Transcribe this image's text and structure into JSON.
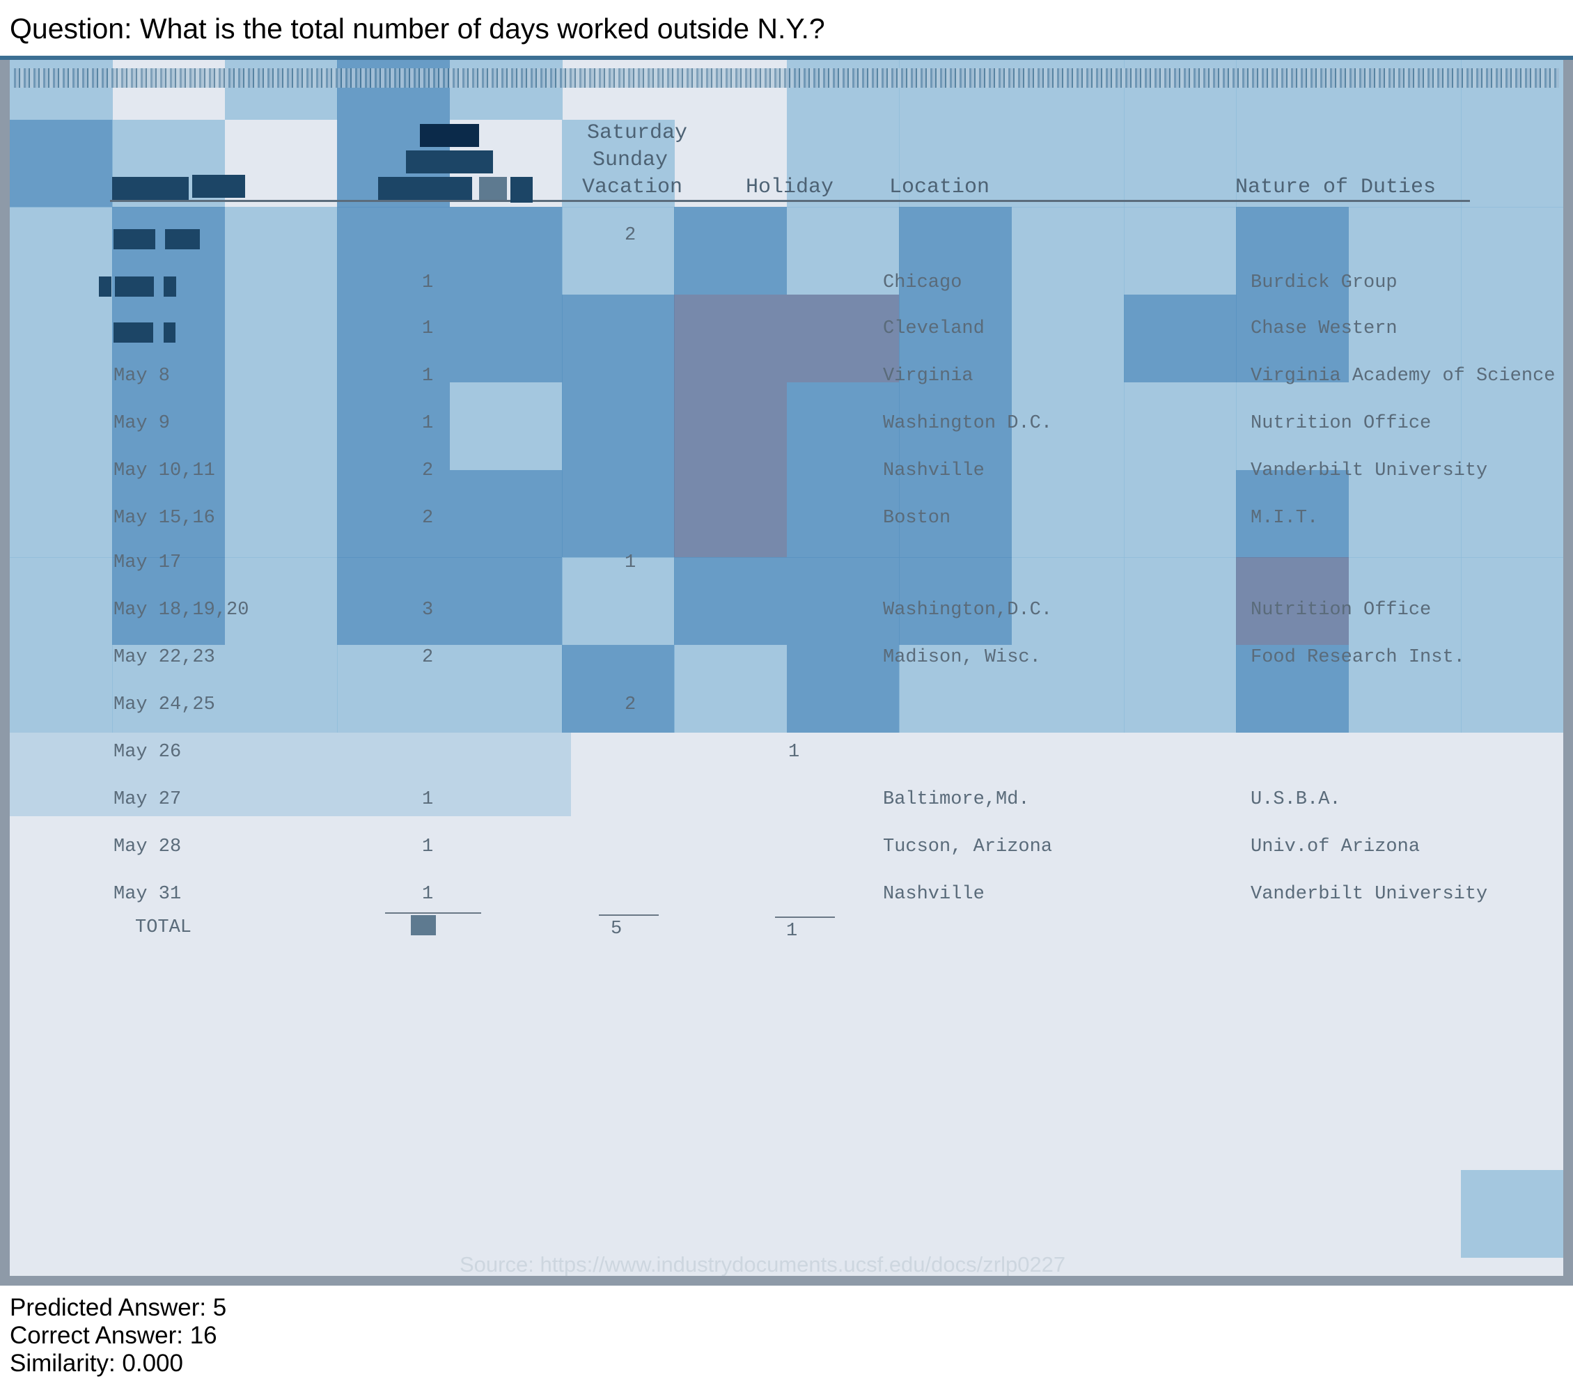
{
  "question": "Question: What is the total number of days worked outside N.Y.?",
  "document": {
    "headers": {
      "vacation_line1": "Saturday",
      "vacation_line2": "Sunday",
      "vacation_line3": "Vacation",
      "holiday": "Holiday",
      "location": "Location",
      "duties": "Nature of Duties"
    },
    "rows": [
      {
        "date": "",
        "days": "",
        "vacation": "2",
        "holiday": "",
        "location": "",
        "duties": ""
      },
      {
        "date": "",
        "days": "1",
        "vacation": "",
        "holiday": "",
        "location": "Chicago",
        "duties": "Burdick Group"
      },
      {
        "date": "",
        "days": "1",
        "vacation": "",
        "holiday": "",
        "location": "Cleveland",
        "duties": "Chase Western"
      },
      {
        "date": "May 8",
        "days": "1",
        "vacation": "",
        "holiday": "",
        "location": "Virginia",
        "duties": "Virginia Academy of Science"
      },
      {
        "date": "May 9",
        "days": "1",
        "vacation": "",
        "holiday": "",
        "location": "Washington D.C.",
        "duties": "Nutrition Office"
      },
      {
        "date": "May 10,11",
        "days": "2",
        "vacation": "",
        "holiday": "",
        "location": "Nashville",
        "duties": "Vanderbilt University"
      },
      {
        "date": "May 15,16",
        "days": "2",
        "vacation": "",
        "holiday": "",
        "location": "Boston",
        "duties": "M.I.T."
      },
      {
        "date": "May 17",
        "days": "",
        "vacation": "1",
        "holiday": "",
        "location": "",
        "duties": ""
      },
      {
        "date": "May 18,19,20",
        "days": "3",
        "vacation": "",
        "holiday": "",
        "location": "Washington,D.C.",
        "duties": "Nutrition Office"
      },
      {
        "date": "May 22,23",
        "days": "2",
        "vacation": "",
        "holiday": "",
        "location": "Madison, Wisc.",
        "duties": "Food Research Inst."
      },
      {
        "date": "May 24,25",
        "days": "",
        "vacation": "2",
        "holiday": "",
        "location": "",
        "duties": ""
      },
      {
        "date": "May 26",
        "days": "",
        "vacation": "",
        "holiday": "1",
        "location": "",
        "duties": ""
      },
      {
        "date": "May 27",
        "days": "1",
        "vacation": "",
        "holiday": "",
        "location": "Baltimore,Md.",
        "duties": "U.S.B.A."
      },
      {
        "date": "May 28",
        "days": "1",
        "vacation": "",
        "holiday": "",
        "location": "Tucson, Arizona",
        "duties": "Univ.of Arizona"
      },
      {
        "date": "May 31",
        "days": "1",
        "vacation": "",
        "holiday": "",
        "location": "Nashville",
        "duties": "Vanderbilt University"
      }
    ],
    "totals": {
      "label": "TOTAL",
      "vacation": "5",
      "holiday": "1"
    },
    "source": "Source: https://www.industrydocuments.ucsf.edu/docs/zrlp0227"
  },
  "results": {
    "predicted": "Predicted Answer: 5",
    "correct": "Correct Answer: 16",
    "similarity": "Similarity: 0.000"
  },
  "colors": {
    "heat_light": "#e3e8f0",
    "heat_mid": "#8fbcd9",
    "heat_strong": "#5a93c1",
    "heat_purple": "#6a7ea3",
    "redaction": "#1c4566"
  }
}
